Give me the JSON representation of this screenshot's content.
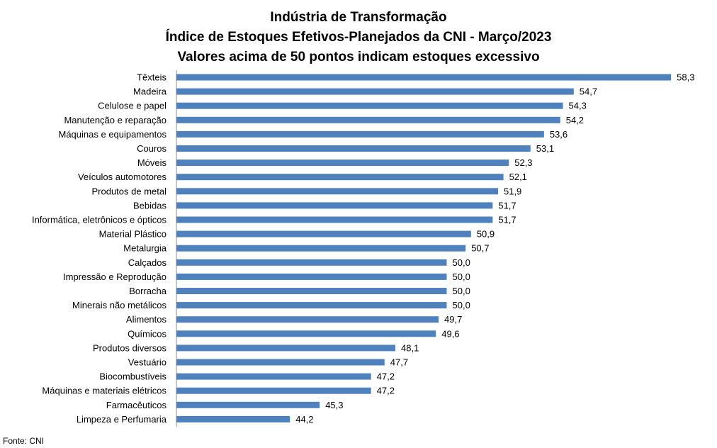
{
  "chart_data": {
    "type": "bar",
    "orientation": "horizontal",
    "title": [
      "Indústria de Transformação",
      "Índice de Estoques Efetivos-Planejados da CNI - Março/2023",
      "Valores acima de 50 pontos indicam estoques excessivo"
    ],
    "categories": [
      "Têxteis",
      "Madeira",
      "Celulose e papel",
      "Manutenção e reparação",
      "Máquinas e equipamentos",
      "Couros",
      "Móveis",
      "Veículos automotores",
      "Produtos de metal",
      "Bebidas",
      "Informática, eletrônicos e ópticos",
      "Material Plástico",
      "Metalurgia",
      "Calçados",
      "Impressão e Reprodução",
      "Borracha",
      "Minerais não metálicos",
      "Alimentos",
      "Químicos",
      "Produtos diversos",
      "Vestuário",
      "Biocombustíveis",
      "Máquinas e materiais elétricos",
      "Farmacêuticos",
      "Limpeza e Perfumaria"
    ],
    "values": [
      58.3,
      54.7,
      54.3,
      54.2,
      53.6,
      53.1,
      52.3,
      52.1,
      51.9,
      51.7,
      51.7,
      50.9,
      50.7,
      50.0,
      50.0,
      50.0,
      50.0,
      49.7,
      49.6,
      48.1,
      47.7,
      47.2,
      47.2,
      45.3,
      44.2
    ],
    "value_labels": [
      "58,3",
      "54,7",
      "54,3",
      "54,2",
      "53,6",
      "53,1",
      "52,3",
      "52,1",
      "51,9",
      "51,7",
      "51,7",
      "50,9",
      "50,7",
      "50,0",
      "50,0",
      "50,0",
      "50,0",
      "49,7",
      "49,6",
      "48,1",
      "47,7",
      "47,2",
      "47,2",
      "45,3",
      "44,2"
    ],
    "xlim": [
      40,
      60
    ],
    "grid": false,
    "legend": "none",
    "bar_color": "#4f81bd",
    "source": "Fonte: CNI"
  }
}
